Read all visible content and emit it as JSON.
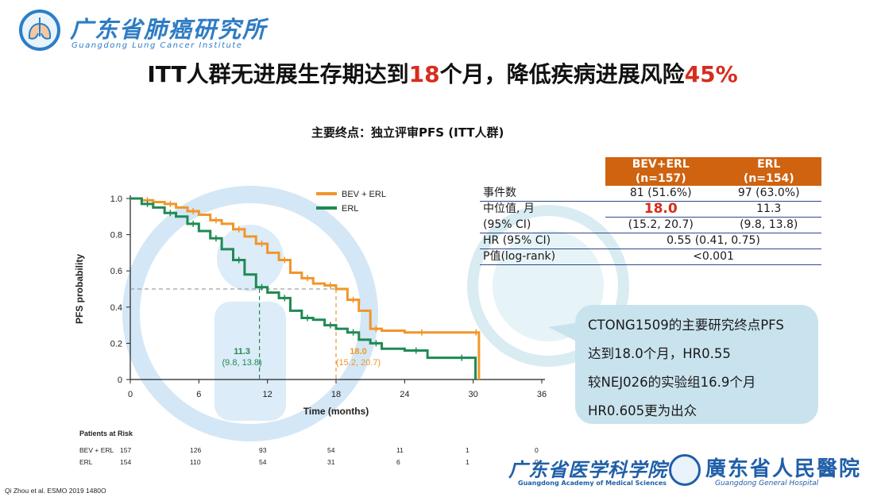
{
  "header": {
    "logo_cn": "广东省肺癌研究所",
    "logo_en": "Guangdong Lung Cancer Institute",
    "title_part1": "ITT人群无进展生存期达到",
    "title_num1": "18",
    "title_part2": "个月，降低疾病进展风险",
    "title_num2": "45%"
  },
  "subtitle": "主要终点：独立评审PFS (ITT人群)",
  "chart_data": {
    "type": "line",
    "title": "主要终点：独立评审PFS (ITT人群)",
    "xlabel": "Time (months)",
    "ylabel": "PFS probability",
    "xlim": [
      0,
      36
    ],
    "ylim": [
      0,
      1.0
    ],
    "xticks": [
      0,
      6,
      12,
      18,
      24,
      30,
      36
    ],
    "yticks": [
      "0",
      "0.2",
      "0.4",
      "0.6",
      "0.8",
      "1.0"
    ],
    "legend": [
      "BEV + ERL",
      "ERL"
    ],
    "colors": {
      "BEV + ERL": "#f0962a",
      "ERL": "#1f8a54"
    },
    "series": [
      {
        "name": "BEV + ERL",
        "x": [
          0,
          1,
          2,
          3,
          4,
          5,
          6,
          7,
          8,
          9,
          10,
          11,
          12,
          13,
          14,
          15,
          16,
          17,
          18,
          19,
          20,
          21,
          22,
          24,
          27,
          30,
          30.5,
          30.5
        ],
        "y": [
          1.0,
          0.99,
          0.98,
          0.97,
          0.95,
          0.93,
          0.91,
          0.88,
          0.86,
          0.83,
          0.79,
          0.75,
          0.7,
          0.66,
          0.59,
          0.56,
          0.53,
          0.52,
          0.5,
          0.44,
          0.38,
          0.28,
          0.27,
          0.26,
          0.26,
          0.26,
          0.26,
          0.0
        ]
      },
      {
        "name": "ERL",
        "x": [
          0,
          1,
          2,
          3,
          4,
          5,
          6,
          7,
          8,
          9,
          10,
          11,
          12,
          13,
          14,
          15,
          16,
          17,
          18,
          19,
          20,
          21,
          22,
          24,
          26,
          28,
          30,
          30.2,
          30.2
        ],
        "y": [
          1.0,
          0.97,
          0.95,
          0.92,
          0.9,
          0.86,
          0.82,
          0.78,
          0.72,
          0.66,
          0.58,
          0.51,
          0.48,
          0.45,
          0.38,
          0.34,
          0.33,
          0.3,
          0.28,
          0.26,
          0.22,
          0.2,
          0.17,
          0.16,
          0.12,
          0.12,
          0.12,
          0.12,
          0.0
        ]
      }
    ],
    "annotations": [
      {
        "series": "ERL",
        "median": 11.3,
        "label": "11.3",
        "ci": "(9.8, 13.8)"
      },
      {
        "series": "BEV + ERL",
        "median": 18.0,
        "label": "18.0",
        "ci": "(15.2, 20.7)"
      }
    ],
    "reference_y": 0.5,
    "risk_table": {
      "title": "Patients at Risk",
      "times": [
        0,
        6,
        12,
        18,
        24,
        30,
        36
      ],
      "rows": [
        {
          "name": "BEV + ERL",
          "values": [
            "157",
            "126",
            "93",
            "54",
            "11",
            "1",
            "0"
          ]
        },
        {
          "name": "ERL",
          "values": [
            "154",
            "110",
            "54",
            "31",
            "6",
            "1",
            "0"
          ]
        }
      ]
    }
  },
  "table": {
    "headers": [
      "",
      "BEV+ERL",
      "ERL"
    ],
    "headers_n": [
      "",
      "(n=157)",
      "(n=154)"
    ],
    "events_label": "事件数",
    "events_bev": "81 (51.6%)",
    "events_erl": "97 (63.0%)",
    "median_label": "中位值, 月",
    "median_bev": "18.0",
    "median_erl": "11.3",
    "ci_label": "(95% CI)",
    "ci_bev": "(15.2, 20.7)",
    "ci_erl": "(9.8, 13.8)",
    "hr_label": "HR (95% CI)",
    "hr_value": "0.55 (0.41, 0.75)",
    "p_label": "P值(log-rank)",
    "p_value": "<0.001"
  },
  "callout": {
    "lines": [
      "CTONG1509的主要研究终点PFS",
      "达到18.0个月，HR0.55",
      "较NEJ026的实验组16.9个月",
      "HR0.605更为出众"
    ]
  },
  "citation": "Qi Zhou et al. ESMO 2019 1480O",
  "footer": {
    "gdams_cn": "广东省医学科学院",
    "gdams_en": "Guangdong Academy of Medical Sciences",
    "hosp_cn": "廣东省人民醫院",
    "hosp_en": "Guangdong General Hospital"
  }
}
